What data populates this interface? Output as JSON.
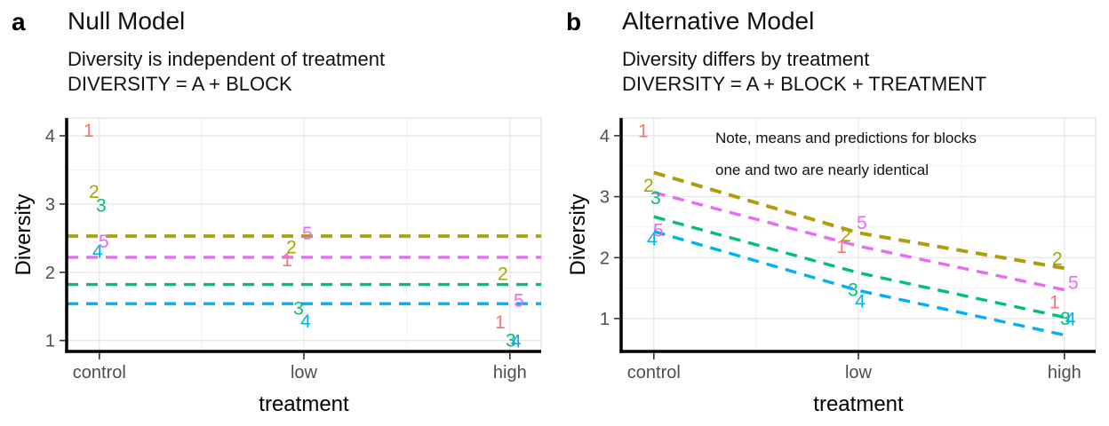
{
  "styles": {
    "axis_color": "#000000",
    "tick_color": "#333333",
    "tick_label_color": "#4d4d4d",
    "axis_title_color": "#000000",
    "grid_major": "#e4e4e4",
    "grid_minor": "#f1f1f1",
    "panel_border": "#d9d9d9",
    "annotation_color": "#111111"
  },
  "chart_data": [
    {
      "panel_label": "a",
      "type": "scatter",
      "title": "Null Model",
      "subtitle": [
        "Diversity is independent of treatment",
        "DIVERSITY = A + BLOCK"
      ],
      "xlabel": "treatment",
      "ylabel": "Diversity",
      "categories": [
        "control",
        "low",
        "high"
      ],
      "yticks": [
        1,
        2,
        3,
        4
      ],
      "ylim": [
        0.84,
        4.26
      ],
      "grid": true,
      "legend": "none",
      "lines_span": "panel",
      "line_style": "dashed",
      "points": [
        {
          "block": "1",
          "color": "#F8766D",
          "values": [
            4.08,
            2.18,
            1.27
          ]
        },
        {
          "block": "2",
          "color": "#A3A500",
          "values": [
            3.18,
            2.37,
            1.98
          ]
        },
        {
          "block": "3",
          "color": "#00BF7D",
          "values": [
            2.98,
            1.47,
            1.0
          ]
        },
        {
          "block": "4",
          "color": "#00B0F6",
          "values": [
            2.3,
            1.28,
            0.99
          ]
        },
        {
          "block": "5",
          "color": "#E76BF3",
          "values": [
            2.45,
            2.57,
            1.59
          ]
        }
      ],
      "lines": [
        {
          "block": "1",
          "color": "#F8766D",
          "values": [
            2.53,
            2.53,
            2.53
          ],
          "overlaps_block": "2"
        },
        {
          "block": "5",
          "color": "#E76BF3",
          "values": [
            2.22,
            2.22,
            2.22
          ]
        },
        {
          "block": "3",
          "color": "#00BF7D",
          "values": [
            1.82,
            1.82,
            1.82
          ]
        },
        {
          "block": "4",
          "color": "#00B0F6",
          "values": [
            1.54,
            1.54,
            1.54
          ]
        },
        {
          "block": "2",
          "color": "#A3A500",
          "values": [
            2.53,
            2.53,
            2.53
          ]
        }
      ],
      "label_dx": {
        "1": [
          -12,
          -19,
          -11
        ],
        "2": [
          -6,
          -14,
          -8
        ],
        "3": [
          2,
          -6,
          1
        ],
        "4": [
          -2,
          2,
          7
        ],
        "5": [
          5,
          4,
          10
        ]
      }
    },
    {
      "panel_label": "b",
      "type": "scatter",
      "title": "Alternative Model",
      "subtitle": [
        "Diversity differs by treatment",
        "DIVERSITY = A + BLOCK + TREATMENT"
      ],
      "xlabel": "treatment",
      "ylabel": "Diversity",
      "categories": [
        "control",
        "low",
        "high"
      ],
      "yticks": [
        1,
        2,
        3,
        4
      ],
      "ylim": [
        0.46,
        4.29
      ],
      "grid": true,
      "legend": "none",
      "lines_span": "categories",
      "line_style": "dashed",
      "points": [
        {
          "block": "1",
          "color": "#F8766D",
          "values": [
            4.08,
            2.18,
            1.27
          ]
        },
        {
          "block": "2",
          "color": "#A3A500",
          "values": [
            3.18,
            2.37,
            1.98
          ]
        },
        {
          "block": "3",
          "color": "#00BF7D",
          "values": [
            2.98,
            1.47,
            1.0
          ]
        },
        {
          "block": "4",
          "color": "#00B0F6",
          "values": [
            2.3,
            1.28,
            0.99
          ]
        },
        {
          "block": "5",
          "color": "#E76BF3",
          "values": [
            2.45,
            2.57,
            1.59
          ]
        }
      ],
      "lines": [
        {
          "block": "1",
          "color": "#F8766D",
          "values": [
            3.39,
            2.4,
            1.82
          ],
          "overlaps_block": "2"
        },
        {
          "block": "5",
          "color": "#E76BF3",
          "values": [
            3.07,
            2.19,
            1.47
          ]
        },
        {
          "block": "3",
          "color": "#00BF7D",
          "values": [
            2.67,
            1.75,
            1.02
          ]
        },
        {
          "block": "4",
          "color": "#00B0F6",
          "values": [
            2.43,
            1.46,
            0.73
          ]
        },
        {
          "block": "2",
          "color": "#A3A500",
          "values": [
            3.4,
            2.41,
            1.83
          ]
        }
      ],
      "label_dx": {
        "1": [
          -12,
          -19,
          -11
        ],
        "2": [
          -6,
          -14,
          -8
        ],
        "3": [
          2,
          -6,
          1
        ],
        "4": [
          -2,
          2,
          7
        ],
        "5": [
          5,
          4,
          10
        ]
      },
      "annotation": {
        "lines": [
          "Note, means and predictions for blocks",
          "one and two are nearly identical"
        ]
      }
    }
  ]
}
